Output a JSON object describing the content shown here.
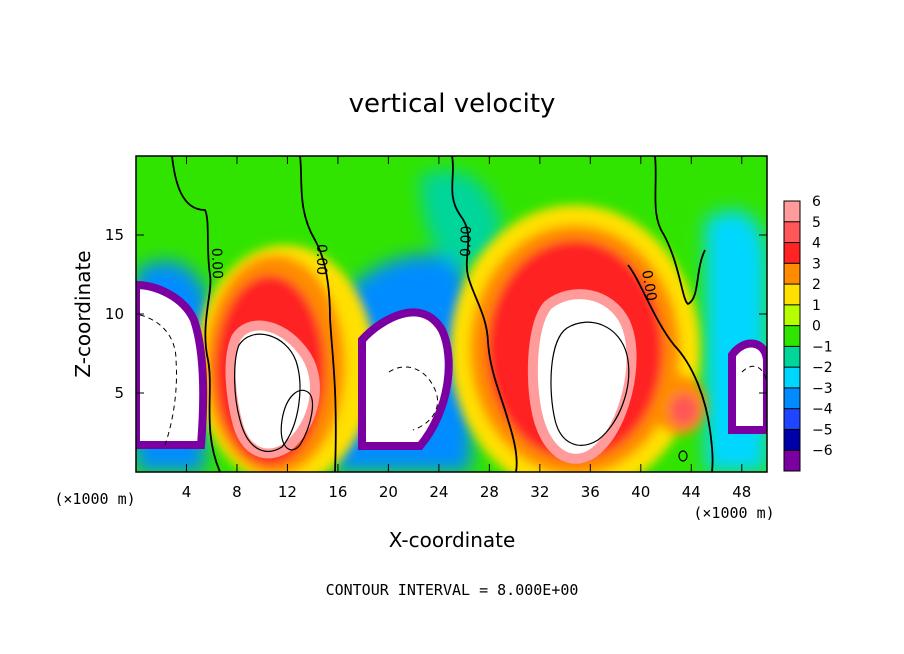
{
  "chart_data": {
    "type": "heatmap",
    "title": "vertical velocity",
    "xlabel": "X-coordinate",
    "ylabel": "Z-coordinate",
    "x_units": "(×1000 m)",
    "y_units": "(×1000 m)",
    "xlim": [
      0,
      50
    ],
    "ylim": [
      0,
      20
    ],
    "x_ticks": [
      4,
      8,
      12,
      16,
      20,
      24,
      28,
      32,
      36,
      40,
      44,
      48
    ],
    "y_ticks": [
      5,
      10,
      15
    ],
    "colorbar": {
      "range": [
        -6,
        6
      ],
      "ticks": [
        6,
        5,
        4,
        3,
        2,
        1,
        0,
        -1,
        -2,
        -3,
        -4,
        -5,
        -6
      ],
      "tick_labels": [
        "6",
        "5",
        "4",
        "3",
        "2",
        "1",
        "0",
        "−1",
        "−2",
        "−3",
        "−4",
        "−5",
        "−6"
      ],
      "colors": [
        "#ff9b9b",
        "#ff5757",
        "#ff2323",
        "#ff8c00",
        "#ffe000",
        "#b7ff00",
        "#31e400",
        "#00d59a",
        "#00d7ff",
        "#008cff",
        "#1e45ff",
        "#0000a8",
        "#7a00a2"
      ]
    },
    "contours": {
      "interval_text": "CONTOUR INTERVAL = 8.000E+00",
      "labels": [
        "0.00",
        "0.00",
        "0.00",
        "0.00"
      ]
    }
  }
}
